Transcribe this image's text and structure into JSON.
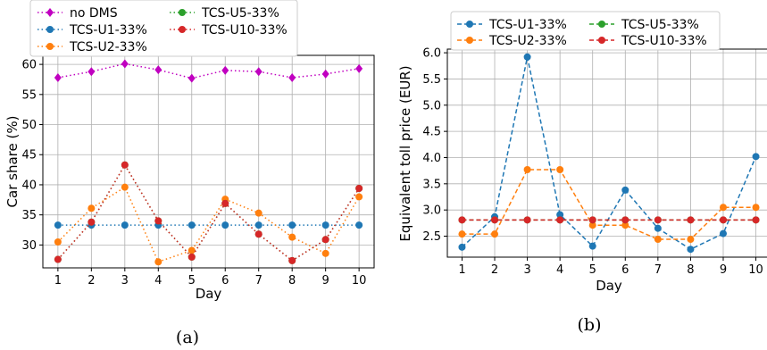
{
  "chart_data": [
    {
      "type": "line",
      "caption": "(a)",
      "xlabel": "Day",
      "ylabel": "Car share (%)",
      "xlim": [
        0.55,
        10.45
      ],
      "ylim": [
        26.2,
        61.5
      ],
      "x": [
        1,
        2,
        3,
        4,
        5,
        6,
        7,
        8,
        9,
        10
      ],
      "xticks": [
        1,
        2,
        3,
        4,
        5,
        6,
        7,
        8,
        9,
        10
      ],
      "yticks": [
        30,
        35,
        40,
        45,
        50,
        55,
        60
      ],
      "grid": true,
      "legend_position": "above-plot",
      "series": [
        {
          "name": "no DMS",
          "color": "#c000c0",
          "linestyle": "dotted",
          "marker": "diamond",
          "values": [
            57.8,
            58.8,
            60.1,
            59.1,
            57.7,
            59.0,
            58.8,
            57.8,
            58.4,
            59.3
          ]
        },
        {
          "name": "TCS-U1-33%",
          "color": "#1f77b4",
          "linestyle": "dotted",
          "marker": "circle",
          "values": [
            33.3,
            33.3,
            33.3,
            33.3,
            33.3,
            33.3,
            33.3,
            33.3,
            33.3,
            33.3
          ]
        },
        {
          "name": "TCS-U2-33%",
          "color": "#ff7f0e",
          "linestyle": "dotted",
          "marker": "circle",
          "values": [
            30.5,
            36.1,
            39.6,
            27.2,
            29.1,
            37.6,
            35.3,
            31.3,
            28.6,
            38.0
          ]
        },
        {
          "name": "TCS-U5-33%",
          "color": "#2ca02c",
          "linestyle": "dotted",
          "marker": "circle",
          "values": [
            27.6,
            33.8,
            43.3,
            34.0,
            28.0,
            36.9,
            31.8,
            27.4,
            30.9,
            39.4
          ]
        },
        {
          "name": "TCS-U10-33%",
          "color": "#d62728",
          "linestyle": "dotted",
          "marker": "circle",
          "values": [
            27.6,
            33.8,
            43.3,
            34.0,
            28.0,
            36.9,
            31.8,
            27.4,
            30.9,
            39.4
          ]
        }
      ]
    },
    {
      "type": "line",
      "caption": "(b)",
      "xlabel": "Day",
      "ylabel": "Equivalent toll price (EUR)",
      "xlim": [
        0.55,
        10.45
      ],
      "ylim": [
        2.1,
        6.07
      ],
      "x": [
        1,
        2,
        3,
        4,
        5,
        6,
        7,
        8,
        9,
        10
      ],
      "xticks": [
        1,
        2,
        3,
        4,
        5,
        6,
        7,
        8,
        9,
        10
      ],
      "yticks": [
        2.5,
        3.0,
        3.5,
        4.0,
        4.5,
        5.0,
        5.5,
        6.0
      ],
      "ytick_labels": [
        "2.5",
        "3.0",
        "3.5",
        "4.0",
        "4.5",
        "5.0",
        "5.5",
        "6.0"
      ],
      "grid": true,
      "legend_position": "above-plot",
      "series": [
        {
          "name": "TCS-U1-33%",
          "color": "#1f77b4",
          "linestyle": "dashed",
          "marker": "circle",
          "values": [
            2.29,
            2.87,
            5.92,
            2.91,
            2.31,
            3.38,
            2.65,
            2.25,
            2.55,
            4.02
          ]
        },
        {
          "name": "TCS-U2-33%",
          "color": "#ff7f0e",
          "linestyle": "dashed",
          "marker": "circle",
          "values": [
            2.54,
            2.54,
            3.77,
            3.77,
            2.71,
            2.71,
            2.44,
            2.44,
            3.05,
            3.05
          ]
        },
        {
          "name": "TCS-U5-33%",
          "color": "#2ca02c",
          "linestyle": "dashed",
          "marker": "circle",
          "values": [
            2.81,
            2.81,
            2.81,
            2.81,
            2.81,
            2.81,
            2.81,
            2.81,
            2.81,
            2.81
          ]
        },
        {
          "name": "TCS-U10-33%",
          "color": "#d62728",
          "linestyle": "dashed",
          "marker": "circle",
          "values": [
            2.81,
            2.81,
            2.81,
            2.81,
            2.81,
            2.81,
            2.81,
            2.81,
            2.81,
            2.81
          ]
        }
      ]
    }
  ]
}
